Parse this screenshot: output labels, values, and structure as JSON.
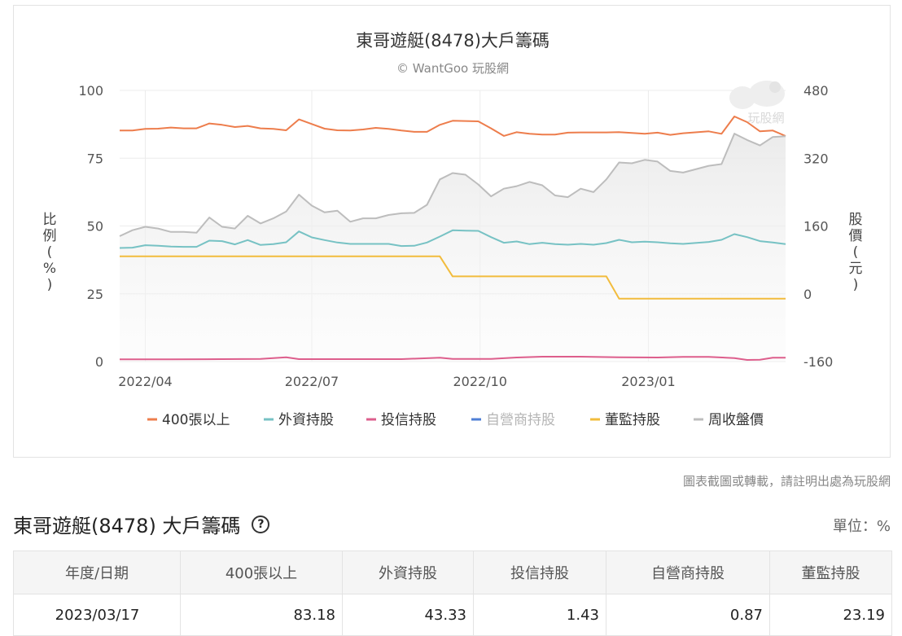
{
  "chart_data": {
    "type": "line",
    "title": "東哥遊艇(8478)大戶籌碼",
    "subtitle": "© WantGoo 玩股網",
    "watermark_text": "玩股網",
    "ylabel_left": "比例(%)",
    "ylabel_right": "股價(元)",
    "ylim_left": [
      0,
      100
    ],
    "ylim_right": [
      -160,
      480
    ],
    "yticks_left": [
      "0",
      "25",
      "50",
      "75",
      "100"
    ],
    "yticks_right": [
      "-160",
      "0",
      "160",
      "320",
      "480"
    ],
    "x_start": "2022-03-18",
    "x_end": "2023-03-17",
    "xticks": [
      "2022/04",
      "2022/07",
      "2022/10",
      "2023/01"
    ],
    "xtick_dates": [
      "2022-04-01",
      "2022-07-01",
      "2022-10-01",
      "2023-01-01"
    ],
    "legend_position": "bottom",
    "series": [
      {
        "name": "400張以上",
        "color": "#ed7d4c",
        "axis": "left",
        "visible": true,
        "points": [
          [
            "2022-03-18",
            85.2
          ],
          [
            "2022-03-25",
            85.2
          ],
          [
            "2022-04-01",
            85.8
          ],
          [
            "2022-04-08",
            85.9
          ],
          [
            "2022-04-15",
            86.3
          ],
          [
            "2022-04-22",
            86.0
          ],
          [
            "2022-04-29",
            86.0
          ],
          [
            "2022-05-06",
            87.8
          ],
          [
            "2022-05-13",
            87.3
          ],
          [
            "2022-05-20",
            86.5
          ],
          [
            "2022-05-27",
            86.9
          ],
          [
            "2022-06-03",
            86.0
          ],
          [
            "2022-06-10",
            85.8
          ],
          [
            "2022-06-17",
            85.3
          ],
          [
            "2022-06-24",
            89.3
          ],
          [
            "2022-07-01",
            87.6
          ],
          [
            "2022-07-08",
            85.9
          ],
          [
            "2022-07-15",
            85.3
          ],
          [
            "2022-07-22",
            85.2
          ],
          [
            "2022-07-29",
            85.6
          ],
          [
            "2022-08-05",
            86.2
          ],
          [
            "2022-08-12",
            85.8
          ],
          [
            "2022-08-19",
            85.2
          ],
          [
            "2022-08-26",
            84.7
          ],
          [
            "2022-09-02",
            84.7
          ],
          [
            "2022-09-09",
            87.3
          ],
          [
            "2022-09-16",
            88.8
          ],
          [
            "2022-09-23",
            88.7
          ],
          [
            "2022-09-30",
            88.6
          ],
          [
            "2022-10-07",
            86.0
          ],
          [
            "2022-10-14",
            83.2
          ],
          [
            "2022-10-21",
            84.6
          ],
          [
            "2022-10-28",
            84.0
          ],
          [
            "2022-11-04",
            83.7
          ],
          [
            "2022-11-11",
            83.7
          ],
          [
            "2022-11-18",
            84.4
          ],
          [
            "2022-11-25",
            84.5
          ],
          [
            "2022-12-02",
            84.5
          ],
          [
            "2022-12-09",
            84.5
          ],
          [
            "2022-12-16",
            84.6
          ],
          [
            "2022-12-23",
            84.3
          ],
          [
            "2022-12-30",
            84.0
          ],
          [
            "2023-01-06",
            84.4
          ],
          [
            "2023-01-13",
            83.6
          ],
          [
            "2023-01-20",
            84.2
          ],
          [
            "2023-02-03",
            84.9
          ],
          [
            "2023-02-10",
            84.0
          ],
          [
            "2023-02-17",
            90.4
          ],
          [
            "2023-02-24",
            88.3
          ],
          [
            "2023-03-03",
            84.9
          ],
          [
            "2023-03-10",
            85.2
          ],
          [
            "2023-03-17",
            83.18
          ]
        ]
      },
      {
        "name": "外資持股",
        "color": "#77c2c4",
        "axis": "left",
        "visible": true,
        "points": [
          [
            "2022-03-18",
            41.9
          ],
          [
            "2022-03-25",
            42.0
          ],
          [
            "2022-04-01",
            42.9
          ],
          [
            "2022-04-08",
            42.7
          ],
          [
            "2022-04-15",
            42.4
          ],
          [
            "2022-04-22",
            42.3
          ],
          [
            "2022-04-29",
            42.3
          ],
          [
            "2022-05-06",
            44.6
          ],
          [
            "2022-05-13",
            44.4
          ],
          [
            "2022-05-20",
            43.2
          ],
          [
            "2022-05-27",
            44.8
          ],
          [
            "2022-06-03",
            43.0
          ],
          [
            "2022-06-10",
            43.3
          ],
          [
            "2022-06-17",
            44.0
          ],
          [
            "2022-06-24",
            48.0
          ],
          [
            "2022-07-01",
            45.8
          ],
          [
            "2022-07-08",
            44.8
          ],
          [
            "2022-07-15",
            43.9
          ],
          [
            "2022-07-22",
            43.4
          ],
          [
            "2022-07-29",
            43.4
          ],
          [
            "2022-08-05",
            43.4
          ],
          [
            "2022-08-12",
            43.4
          ],
          [
            "2022-08-19",
            42.6
          ],
          [
            "2022-08-26",
            42.7
          ],
          [
            "2022-09-02",
            43.9
          ],
          [
            "2022-09-09",
            46.1
          ],
          [
            "2022-09-16",
            48.4
          ],
          [
            "2022-09-23",
            48.3
          ],
          [
            "2022-09-30",
            48.2
          ],
          [
            "2022-10-07",
            45.9
          ],
          [
            "2022-10-14",
            43.8
          ],
          [
            "2022-10-21",
            44.3
          ],
          [
            "2022-10-28",
            43.3
          ],
          [
            "2022-11-04",
            43.8
          ],
          [
            "2022-11-11",
            43.3
          ],
          [
            "2022-11-18",
            43.1
          ],
          [
            "2022-11-25",
            43.4
          ],
          [
            "2022-12-02",
            43.1
          ],
          [
            "2022-12-09",
            43.7
          ],
          [
            "2022-12-16",
            44.9
          ],
          [
            "2022-12-23",
            44.0
          ],
          [
            "2022-12-30",
            44.2
          ],
          [
            "2023-01-06",
            44.0
          ],
          [
            "2023-01-13",
            43.6
          ],
          [
            "2023-01-20",
            43.4
          ],
          [
            "2023-02-03",
            44.1
          ],
          [
            "2023-02-10",
            44.9
          ],
          [
            "2023-02-17",
            47.0
          ],
          [
            "2023-02-24",
            45.9
          ],
          [
            "2023-03-03",
            44.4
          ],
          [
            "2023-03-10",
            43.9
          ],
          [
            "2023-03-17",
            43.33
          ]
        ]
      },
      {
        "name": "投信持股",
        "color": "#dd5e8c",
        "axis": "left",
        "visible": true,
        "points": [
          [
            "2022-03-18",
            0.8
          ],
          [
            "2022-04-15",
            0.8
          ],
          [
            "2022-05-13",
            0.9
          ],
          [
            "2022-06-03",
            1.0
          ],
          [
            "2022-06-17",
            1.6
          ],
          [
            "2022-06-24",
            0.9
          ],
          [
            "2022-08-19",
            0.9
          ],
          [
            "2022-09-09",
            1.4
          ],
          [
            "2022-09-16",
            1.0
          ],
          [
            "2022-10-07",
            1.0
          ],
          [
            "2022-10-21",
            1.5
          ],
          [
            "2022-11-04",
            1.8
          ],
          [
            "2022-11-25",
            1.8
          ],
          [
            "2022-12-16",
            1.6
          ],
          [
            "2023-01-06",
            1.5
          ],
          [
            "2023-01-20",
            1.7
          ],
          [
            "2023-02-03",
            1.7
          ],
          [
            "2023-02-17",
            1.3
          ],
          [
            "2023-02-24",
            0.6
          ],
          [
            "2023-03-03",
            0.7
          ],
          [
            "2023-03-10",
            1.4
          ],
          [
            "2023-03-17",
            1.43
          ]
        ]
      },
      {
        "name": "自營商持股",
        "color": "#4f7fd6",
        "axis": "left",
        "visible": false,
        "points": []
      },
      {
        "name": "董監持股",
        "color": "#f2bc3d",
        "axis": "left",
        "visible": true,
        "points": [
          [
            "2022-03-18",
            38.8
          ],
          [
            "2022-09-09",
            38.8
          ],
          [
            "2022-09-16",
            31.4
          ],
          [
            "2022-12-09",
            31.4
          ],
          [
            "2022-12-16",
            23.19
          ],
          [
            "2023-03-17",
            23.19
          ]
        ]
      },
      {
        "name": "周收盤價",
        "color": "#bdbdbd",
        "axis": "right",
        "visible": true,
        "area": true,
        "points": [
          [
            "2022-03-18",
            136
          ],
          [
            "2022-03-25",
            150
          ],
          [
            "2022-04-01",
            158
          ],
          [
            "2022-04-08",
            154
          ],
          [
            "2022-04-15",
            146
          ],
          [
            "2022-04-22",
            146
          ],
          [
            "2022-04-29",
            144
          ],
          [
            "2022-05-06",
            180
          ],
          [
            "2022-05-13",
            158
          ],
          [
            "2022-05-20",
            154
          ],
          [
            "2022-05-27",
            184
          ],
          [
            "2022-06-03",
            166
          ],
          [
            "2022-06-10",
            178
          ],
          [
            "2022-06-17",
            194
          ],
          [
            "2022-06-24",
            234
          ],
          [
            "2022-07-01",
            208
          ],
          [
            "2022-07-08",
            192
          ],
          [
            "2022-07-15",
            196
          ],
          [
            "2022-07-22",
            170
          ],
          [
            "2022-07-29",
            178
          ],
          [
            "2022-08-05",
            178
          ],
          [
            "2022-08-12",
            186
          ],
          [
            "2022-08-19",
            190
          ],
          [
            "2022-08-26",
            191
          ],
          [
            "2022-09-02",
            210
          ],
          [
            "2022-09-09",
            270
          ],
          [
            "2022-09-16",
            285
          ],
          [
            "2022-09-23",
            281
          ],
          [
            "2022-09-30",
            258
          ],
          [
            "2022-10-07",
            230
          ],
          [
            "2022-10-14",
            248
          ],
          [
            "2022-10-21",
            254
          ],
          [
            "2022-10-28",
            264
          ],
          [
            "2022-11-04",
            256
          ],
          [
            "2022-11-11",
            232
          ],
          [
            "2022-11-18",
            228
          ],
          [
            "2022-11-25",
            248
          ],
          [
            "2022-12-02",
            240
          ],
          [
            "2022-12-09",
            270
          ],
          [
            "2022-12-16",
            310
          ],
          [
            "2022-12-23",
            308
          ],
          [
            "2022-12-30",
            316
          ],
          [
            "2023-01-06",
            312
          ],
          [
            "2023-01-13",
            290
          ],
          [
            "2023-01-20",
            286
          ],
          [
            "2023-02-03",
            302
          ],
          [
            "2023-02-10",
            306
          ],
          [
            "2023-02-17",
            378
          ],
          [
            "2023-02-24",
            363
          ],
          [
            "2023-03-03",
            350
          ],
          [
            "2023-03-10",
            370
          ],
          [
            "2023-03-17",
            372
          ]
        ]
      }
    ]
  },
  "notice": "圖表截圖或轉載，請註明出處為玩股網",
  "section": {
    "title": "東哥遊艇(8478) 大戶籌碼",
    "help_icon": "question-circle-icon",
    "unit_label": "單位：%"
  },
  "table": {
    "headers": [
      "年度/日期",
      "400張以上",
      "外資持股",
      "投信持股",
      "自營商持股",
      "董監持股"
    ],
    "rows": [
      [
        "2023/03/17",
        "83.18",
        "43.33",
        "1.43",
        "0.87",
        "23.19"
      ]
    ]
  }
}
